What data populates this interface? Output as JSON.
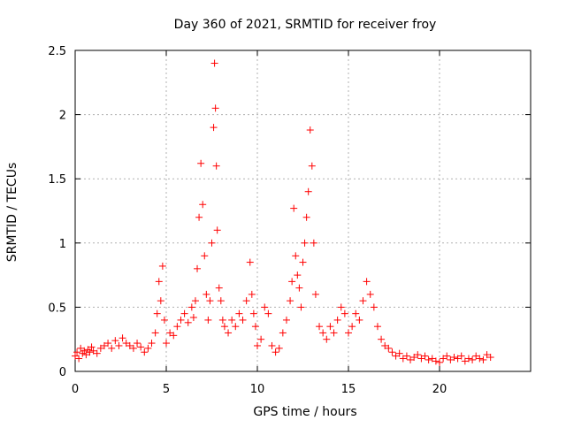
{
  "chart_data": {
    "type": "scatter",
    "title": "Day 360 of 2021, SRMTID for receiver froy",
    "xlabel": "GPS time / hours",
    "ylabel": "SRMTID / TECUs",
    "xlim": [
      0,
      25
    ],
    "ylim": [
      0,
      2.5
    ],
    "x_ticks": [
      0,
      5,
      10,
      15,
      20
    ],
    "y_ticks": [
      0,
      0.5,
      1,
      1.5,
      2,
      2.5
    ],
    "x_tick_labels": [
      "0",
      "5",
      "10",
      "15",
      "20"
    ],
    "y_tick_labels": [
      "0",
      "0.5",
      "1",
      "1.5",
      "2",
      "2.5"
    ],
    "grid": true,
    "marker": "+",
    "series": [
      {
        "name": "SRMTID",
        "color": "#ff0000",
        "x": [
          0.0,
          0.1,
          0.2,
          0.3,
          0.4,
          0.5,
          0.6,
          0.7,
          0.8,
          0.9,
          1.0,
          1.2,
          1.4,
          1.6,
          1.8,
          2.0,
          2.2,
          2.4,
          2.6,
          2.8,
          3.0,
          3.2,
          3.4,
          3.6,
          3.8,
          4.0,
          4.2,
          4.4,
          4.5,
          4.6,
          4.7,
          4.8,
          4.9,
          5.0,
          5.2,
          5.4,
          5.6,
          5.8,
          6.0,
          6.2,
          6.4,
          6.5,
          6.6,
          6.7,
          6.8,
          6.9,
          7.0,
          7.1,
          7.2,
          7.3,
          7.4,
          7.5,
          7.6,
          7.65,
          7.7,
          7.75,
          7.8,
          7.9,
          8.0,
          8.1,
          8.2,
          8.4,
          8.6,
          8.8,
          9.0,
          9.2,
          9.4,
          9.6,
          9.7,
          9.8,
          9.9,
          10.0,
          10.2,
          10.4,
          10.6,
          10.8,
          11.0,
          11.2,
          11.4,
          11.6,
          11.8,
          11.9,
          12.0,
          12.1,
          12.2,
          12.3,
          12.4,
          12.5,
          12.6,
          12.7,
          12.8,
          12.9,
          13.0,
          13.1,
          13.2,
          13.4,
          13.6,
          13.8,
          14.0,
          14.2,
          14.4,
          14.6,
          14.8,
          15.0,
          15.2,
          15.4,
          15.6,
          15.8,
          16.0,
          16.2,
          16.4,
          16.6,
          16.8,
          17.0,
          17.2,
          17.4,
          17.6,
          17.8,
          18.0,
          18.2,
          18.4,
          18.6,
          18.8,
          19.0,
          19.2,
          19.4,
          19.6,
          19.8,
          20.0,
          20.2,
          20.4,
          20.6,
          20.8,
          21.0,
          21.2,
          21.4,
          21.6,
          21.8,
          22.0,
          22.2,
          22.4,
          22.6,
          22.8
        ],
        "y": [
          0.12,
          0.15,
          0.1,
          0.18,
          0.14,
          0.16,
          0.13,
          0.17,
          0.15,
          0.19,
          0.16,
          0.14,
          0.18,
          0.2,
          0.22,
          0.18,
          0.24,
          0.2,
          0.26,
          0.22,
          0.2,
          0.18,
          0.22,
          0.19,
          0.15,
          0.18,
          0.22,
          0.3,
          0.45,
          0.7,
          0.55,
          0.82,
          0.4,
          0.22,
          0.3,
          0.28,
          0.35,
          0.4,
          0.45,
          0.38,
          0.5,
          0.42,
          0.55,
          0.8,
          1.2,
          1.62,
          1.3,
          0.9,
          0.6,
          0.4,
          0.55,
          1.0,
          1.9,
          2.4,
          2.05,
          1.6,
          1.1,
          0.65,
          0.55,
          0.4,
          0.35,
          0.3,
          0.4,
          0.35,
          0.45,
          0.4,
          0.55,
          0.85,
          0.6,
          0.45,
          0.35,
          0.2,
          0.25,
          0.5,
          0.45,
          0.2,
          0.15,
          0.18,
          0.3,
          0.4,
          0.55,
          0.7,
          1.27,
          0.9,
          0.75,
          0.65,
          0.5,
          0.85,
          1.0,
          1.2,
          1.4,
          1.88,
          1.6,
          1.0,
          0.6,
          0.35,
          0.3,
          0.25,
          0.35,
          0.3,
          0.4,
          0.5,
          0.45,
          0.3,
          0.35,
          0.45,
          0.4,
          0.55,
          0.7,
          0.6,
          0.5,
          0.35,
          0.25,
          0.2,
          0.18,
          0.15,
          0.12,
          0.14,
          0.1,
          0.12,
          0.09,
          0.11,
          0.13,
          0.1,
          0.12,
          0.09,
          0.1,
          0.08,
          0.07,
          0.1,
          0.12,
          0.09,
          0.11,
          0.1,
          0.12,
          0.08,
          0.1,
          0.09,
          0.12,
          0.1,
          0.09,
          0.13,
          0.11
        ]
      }
    ]
  }
}
